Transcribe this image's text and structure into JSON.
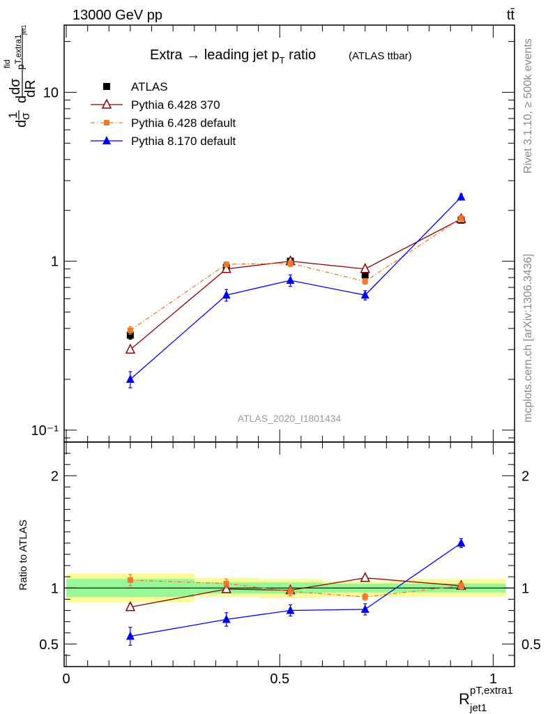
{
  "header": {
    "left": "13000 GeV pp",
    "right": "tt̄"
  },
  "side": {
    "rivet": "Rivet 3.1.10, ≥ 500k events",
    "mcplots": "mcplots.cern.ch [arXiv:1306.3436]"
  },
  "title": {
    "main": "Extra → leading jet p",
    "sub": "T",
    "main2": " ratio",
    "tag": "(ATLAS ttbar)"
  },
  "watermark": "ATLAS_2020_I1801434",
  "yaxis": {
    "d1": "d",
    "one": "1",
    "sigma": "σ",
    "d2": "d",
    "num": "dσ",
    "sup": "fid",
    "sub": "p",
    "subsub": "T,extra1",
    "jet": "jet1",
    "den": "dR"
  },
  "xaxis": {
    "base": "R",
    "sup": "pT,extra1",
    "sub": "jet1"
  },
  "ratio_label": "Ratio to ATLAS",
  "colors": {
    "atlas": "#000000",
    "p370": "#8b0000",
    "p6def": "#f07a2a",
    "p8": "#0000e6",
    "band_green": "#98f898",
    "band_yellow": "#fafa98"
  },
  "chart_data": [
    {
      "type": "line",
      "panel": "main",
      "yscale": "log",
      "ylim": [
        0.085,
        25
      ],
      "xlim": [
        -0.005,
        1.05
      ],
      "yticklabels": [
        "10⁻¹",
        "1",
        "10"
      ],
      "yticks": [
        0.1,
        1,
        10
      ],
      "xticks": [
        0,
        0.5,
        1
      ],
      "series": [
        {
          "name": "ATLAS",
          "marker": "square",
          "x": [
            0.15,
            0.375,
            0.525,
            0.7,
            0.925
          ],
          "y": [
            0.365,
            0.92,
            1.0,
            0.83,
            1.75
          ],
          "yerr": [
            0.02,
            0.03,
            0.03,
            0.03,
            0.06
          ]
        },
        {
          "name": "Pythia 6.428 370",
          "marker": "open-triangle",
          "x": [
            0.15,
            0.375,
            0.525,
            0.7,
            0.925
          ],
          "y": [
            0.3,
            0.9,
            1.0,
            0.9,
            1.78
          ],
          "yerr": [
            0,
            0,
            0,
            0,
            0
          ]
        },
        {
          "name": "Pythia 6.428 default",
          "marker": "small-square",
          "dash": "dashdot",
          "x": [
            0.15,
            0.375,
            0.525,
            0.7,
            0.925
          ],
          "y": [
            0.39,
            0.96,
            0.97,
            0.76,
            1.8
          ],
          "yerr": [
            0.02,
            0.03,
            0.04,
            0.03,
            0.07
          ]
        },
        {
          "name": "Pythia 8.170 default",
          "marker": "filled-triangle",
          "x": [
            0.15,
            0.375,
            0.525,
            0.7,
            0.925
          ],
          "y": [
            0.2,
            0.63,
            0.77,
            0.63,
            2.4
          ],
          "yerr": [
            0.022,
            0.05,
            0.06,
            0.04,
            0.1
          ]
        }
      ]
    },
    {
      "type": "line",
      "panel": "ratio",
      "ylim": [
        0.3,
        2.3
      ],
      "xlim": [
        -0.005,
        1.05
      ],
      "yticklabels": [
        "0.5",
        "1",
        "2"
      ],
      "yticks": [
        0.5,
        1,
        2
      ],
      "xticklabels": [
        "0",
        "0.5",
        "1"
      ],
      "xticks": [
        0,
        0.5,
        1
      ],
      "bands": [
        {
          "x0": 0.0,
          "x1": 0.3,
          "green": [
            0.92,
            1.08
          ],
          "yellow": [
            0.87,
            1.13
          ]
        },
        {
          "x0": 0.3,
          "x1": 0.45,
          "green": [
            0.95,
            1.05
          ],
          "yellow": [
            0.92,
            1.09
          ]
        },
        {
          "x0": 0.45,
          "x1": 0.6,
          "green": [
            0.95,
            1.05
          ],
          "yellow": [
            0.91,
            1.08
          ]
        },
        {
          "x0": 0.6,
          "x1": 0.8,
          "green": [
            0.96,
            1.04
          ],
          "yellow": [
            0.92,
            1.06
          ]
        },
        {
          "x0": 0.8,
          "x1": 1.05,
          "green": [
            0.96,
            1.04
          ],
          "yellow": [
            0.92,
            1.08
          ]
        }
      ],
      "series": [
        {
          "name": "Pythia 6.428 370",
          "marker": "open-triangle",
          "x": [
            0.15,
            0.375,
            0.525,
            0.7,
            0.925
          ],
          "y": [
            0.83,
            0.99,
            0.98,
            1.09,
            1.02
          ],
          "yerr": [
            0.03,
            0,
            0,
            0,
            0
          ]
        },
        {
          "name": "Pythia 6.428 default",
          "marker": "small-square",
          "dash": "dashdot",
          "x": [
            0.15,
            0.375,
            0.525,
            0.7,
            0.925
          ],
          "y": [
            1.07,
            1.04,
            0.97,
            0.92,
            1.02
          ],
          "yerr": [
            0.05,
            0.04,
            0.04,
            0.03,
            0.03
          ]
        },
        {
          "name": "Pythia 8.170 default",
          "marker": "filled-triangle",
          "x": [
            0.15,
            0.375,
            0.525,
            0.7,
            0.925
          ],
          "y": [
            0.57,
            0.72,
            0.8,
            0.81,
            1.4
          ],
          "yerr": [
            0.08,
            0.06,
            0.05,
            0.05,
            0.04
          ]
        }
      ]
    }
  ]
}
